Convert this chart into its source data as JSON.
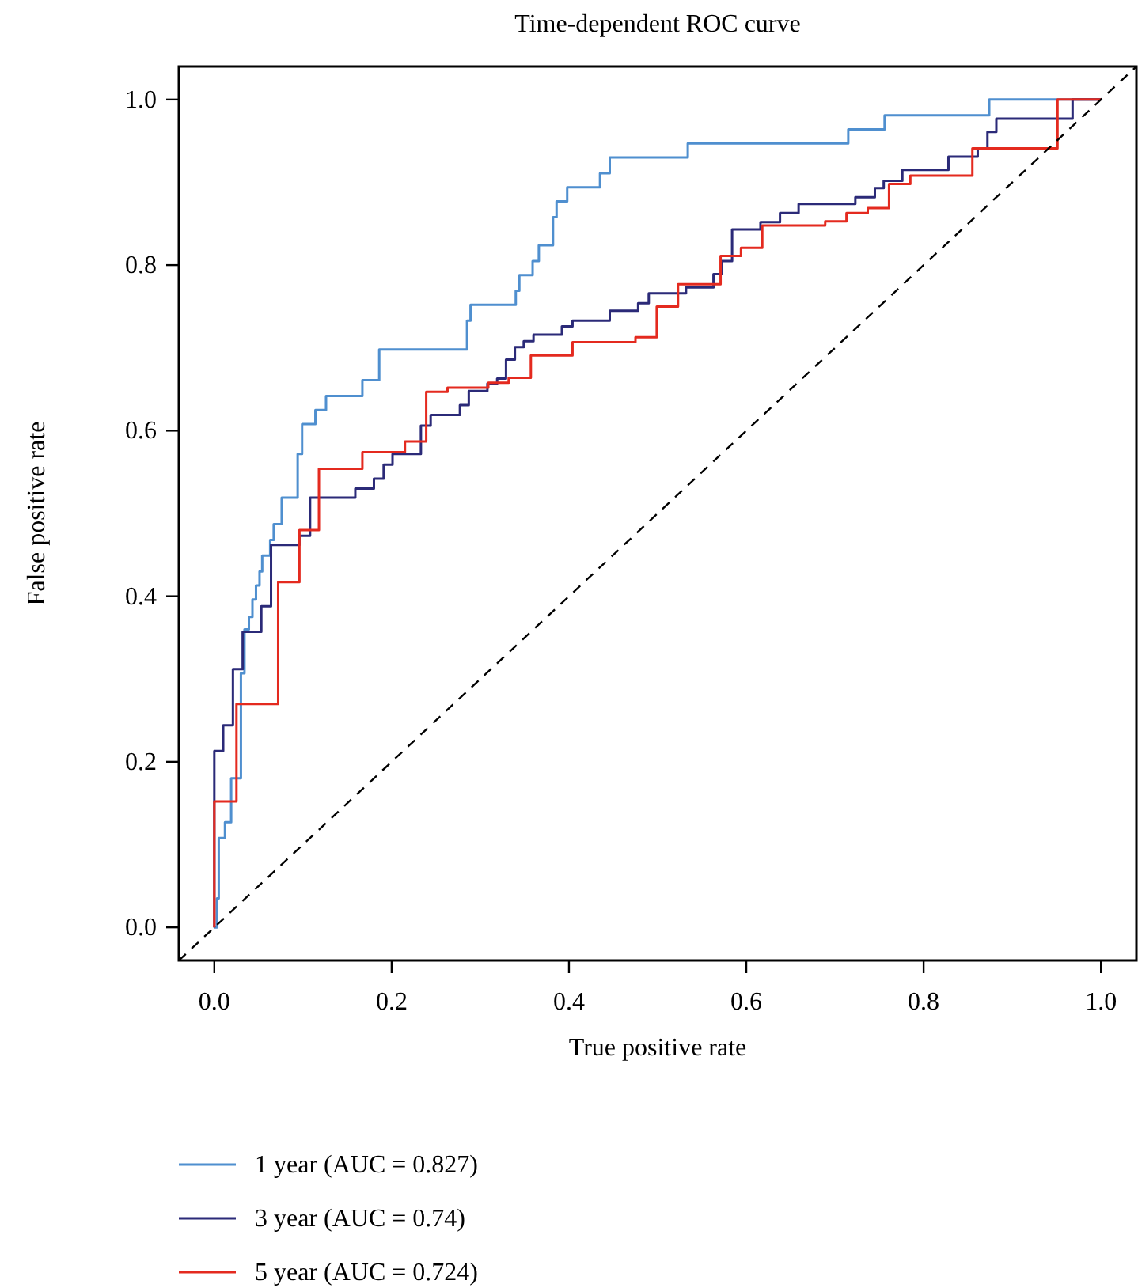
{
  "chart_data": {
    "type": "step",
    "title": "Time-dependent ROC curve",
    "xlabel": "True positive rate",
    "ylabel": "False positive rate",
    "xlim": [
      -0.04,
      1.04
    ],
    "ylim": [
      -0.04,
      1.04
    ],
    "xticks": [
      {
        "value": 0,
        "label": "0.0"
      },
      0.2,
      0.4,
      0.6,
      0.8,
      {
        "value": 1,
        "label": "1.0"
      }
    ],
    "yticks": [
      {
        "value": 0,
        "label": "0.0"
      },
      0.2,
      0.4,
      0.6,
      0.8,
      {
        "value": 1,
        "label": "1.0"
      }
    ],
    "grid": false,
    "legend": "bottom",
    "marker": "none",
    "series": [
      {
        "name": "1 year (AUC = 0.827)",
        "color": "#4f8fcf",
        "x": [
          0,
          0.003,
          0.005,
          0.012,
          0.019,
          0.03,
          0.034,
          0.039,
          0.043,
          0.047,
          0.051,
          0.054,
          0.063,
          0.067,
          0.076,
          0.094,
          0.099,
          0.114,
          0.126,
          0.167,
          0.186,
          0.285,
          0.289,
          0.34,
          0.344,
          0.359,
          0.366,
          0.382,
          0.386,
          0.398,
          0.435,
          0.446,
          0.534,
          0.715,
          0.756,
          0.874,
          1
        ],
        "values": [
          0,
          0.035,
          0.108,
          0.127,
          0.18,
          0.307,
          0.36,
          0.375,
          0.396,
          0.413,
          0.43,
          0.449,
          0.468,
          0.487,
          0.519,
          0.572,
          0.608,
          0.625,
          0.642,
          0.661,
          0.698,
          0.733,
          0.752,
          0.769,
          0.788,
          0.805,
          0.824,
          0.858,
          0.877,
          0.894,
          0.911,
          0.93,
          0.947,
          0.964,
          0.981,
          1,
          1
        ]
      },
      {
        "name": "3 year (AUC = 0.74)",
        "color": "#2b2a78",
        "x": [
          0,
          0,
          0.01,
          0.021,
          0.032,
          0.053,
          0.064,
          0.096,
          0.108,
          0.159,
          0.18,
          0.191,
          0.201,
          0.233,
          0.244,
          0.277,
          0.287,
          0.308,
          0.319,
          0.329,
          0.339,
          0.349,
          0.36,
          0.392,
          0.404,
          0.446,
          0.478,
          0.49,
          0.532,
          0.563,
          0.572,
          0.584,
          0.616,
          0.638,
          0.659,
          0.723,
          0.745,
          0.755,
          0.776,
          0.828,
          0.861,
          0.872,
          0.882,
          0.968,
          1
        ],
        "values": [
          0,
          0.213,
          0.244,
          0.312,
          0.357,
          0.388,
          0.462,
          0.473,
          0.519,
          0.53,
          0.542,
          0.559,
          0.572,
          0.606,
          0.619,
          0.631,
          0.648,
          0.657,
          0.663,
          0.686,
          0.701,
          0.708,
          0.716,
          0.726,
          0.733,
          0.745,
          0.754,
          0.766,
          0.773,
          0.789,
          0.805,
          0.843,
          0.852,
          0.863,
          0.874,
          0.882,
          0.893,
          0.902,
          0.915,
          0.931,
          0.941,
          0.961,
          0.977,
          1,
          1
        ]
      },
      {
        "name": "5 year (AUC = 0.724)",
        "color": "#e42a1f",
        "x": [
          0,
          0,
          0.025,
          0.072,
          0.096,
          0.118,
          0.167,
          0.215,
          0.239,
          0.263,
          0.309,
          0.332,
          0.357,
          0.404,
          0.475,
          0.499,
          0.523,
          0.571,
          0.594,
          0.618,
          0.689,
          0.713,
          0.737,
          0.761,
          0.785,
          0.855,
          0.951,
          1
        ],
        "values": [
          0,
          0.152,
          0.27,
          0.417,
          0.48,
          0.554,
          0.574,
          0.587,
          0.647,
          0.652,
          0.658,
          0.664,
          0.691,
          0.707,
          0.713,
          0.75,
          0.777,
          0.811,
          0.821,
          0.848,
          0.853,
          0.863,
          0.869,
          0.898,
          0.908,
          0.941,
          1,
          1
        ]
      },
      {
        "type": "line",
        "color": "#000000",
        "line_style": "dashed",
        "x": [
          -0.04,
          1.04
        ],
        "values": [
          -0.04,
          1.04
        ]
      }
    ]
  }
}
